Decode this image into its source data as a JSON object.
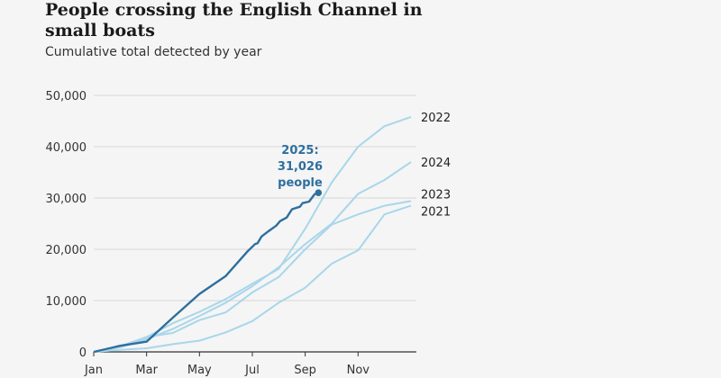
{
  "title": "People crossing the English Channel in small boats",
  "subtitle": "Cumulative total detected by year",
  "chart_data": {
    "type": "line",
    "title": "People crossing the English Channel in small boats",
    "subtitle": "Cumulative total detected by year",
    "xlabel": "",
    "ylabel": "",
    "ylim": [
      0,
      50000
    ],
    "xlim_months": [
      0,
      12
    ],
    "x_ticks": [
      "Jan",
      "Mar",
      "May",
      "Jul",
      "Sep",
      "Nov"
    ],
    "y_ticks": [
      "0",
      "10,000",
      "20,000",
      "30,000",
      "40,000",
      "50,000"
    ],
    "grid": "horizontal",
    "legend": "direct labels at line ends",
    "x_unit": "months since 1 Jan",
    "series": [
      {
        "name": "2022",
        "color": "#a9d6ea",
        "points": [
          [
            0,
            0
          ],
          [
            1,
            1100
          ],
          [
            2,
            2900
          ],
          [
            3,
            5600
          ],
          [
            4,
            7800
          ],
          [
            5,
            10300
          ],
          [
            6,
            13300
          ],
          [
            7,
            16200
          ],
          [
            8,
            24000
          ],
          [
            9,
            33000
          ],
          [
            10,
            40000
          ],
          [
            11,
            44000
          ],
          [
            12,
            45800
          ]
        ]
      },
      {
        "name": "2024",
        "color": "#a9d6ea",
        "points": [
          [
            0,
            0
          ],
          [
            1,
            900
          ],
          [
            2,
            2500
          ],
          [
            3,
            4500
          ],
          [
            4,
            7000
          ],
          [
            5,
            9600
          ],
          [
            6,
            12800
          ],
          [
            7,
            16500
          ],
          [
            8,
            21000
          ],
          [
            9,
            25000
          ],
          [
            10,
            30800
          ],
          [
            11,
            33500
          ],
          [
            12,
            37000
          ]
        ]
      },
      {
        "name": "2023",
        "color": "#a9d6ea",
        "points": [
          [
            0,
            0
          ],
          [
            1,
            1000
          ],
          [
            2,
            2900
          ],
          [
            3,
            3700
          ],
          [
            4,
            6200
          ],
          [
            5,
            7700
          ],
          [
            6,
            11600
          ],
          [
            7,
            14600
          ],
          [
            8,
            20000
          ],
          [
            9,
            24800
          ],
          [
            10,
            26800
          ],
          [
            11,
            28500
          ],
          [
            12,
            29400
          ]
        ]
      },
      {
        "name": "2021",
        "color": "#a9d6ea",
        "points": [
          [
            0,
            0
          ],
          [
            1,
            400
          ],
          [
            2,
            700
          ],
          [
            3,
            1500
          ],
          [
            4,
            2200
          ],
          [
            5,
            3800
          ],
          [
            6,
            6000
          ],
          [
            7,
            9600
          ],
          [
            8,
            12500
          ],
          [
            9,
            17200
          ],
          [
            10,
            19800
          ],
          [
            11,
            26800
          ],
          [
            12,
            28500
          ]
        ]
      },
      {
        "name": "2025",
        "color": "#2e6f9e",
        "points": [
          [
            0,
            0
          ],
          [
            1,
            1200
          ],
          [
            2,
            2000
          ],
          [
            3,
            6700
          ],
          [
            4,
            11300
          ],
          [
            5,
            14800
          ],
          [
            5.8,
            19500
          ],
          [
            6.1,
            21000
          ],
          [
            6.2,
            21200
          ],
          [
            6.35,
            22500
          ],
          [
            6.6,
            23500
          ],
          [
            6.9,
            24600
          ],
          [
            7.05,
            25500
          ],
          [
            7.3,
            26200
          ],
          [
            7.5,
            27800
          ],
          [
            7.8,
            28300
          ],
          [
            7.9,
            29000
          ],
          [
            8.15,
            29300
          ],
          [
            8.35,
            30700
          ],
          [
            8.5,
            31026
          ]
        ]
      }
    ],
    "annotation": {
      "series": "2025",
      "lines": [
        "2025:",
        "31,026",
        "people"
      ],
      "value": 31026
    }
  }
}
